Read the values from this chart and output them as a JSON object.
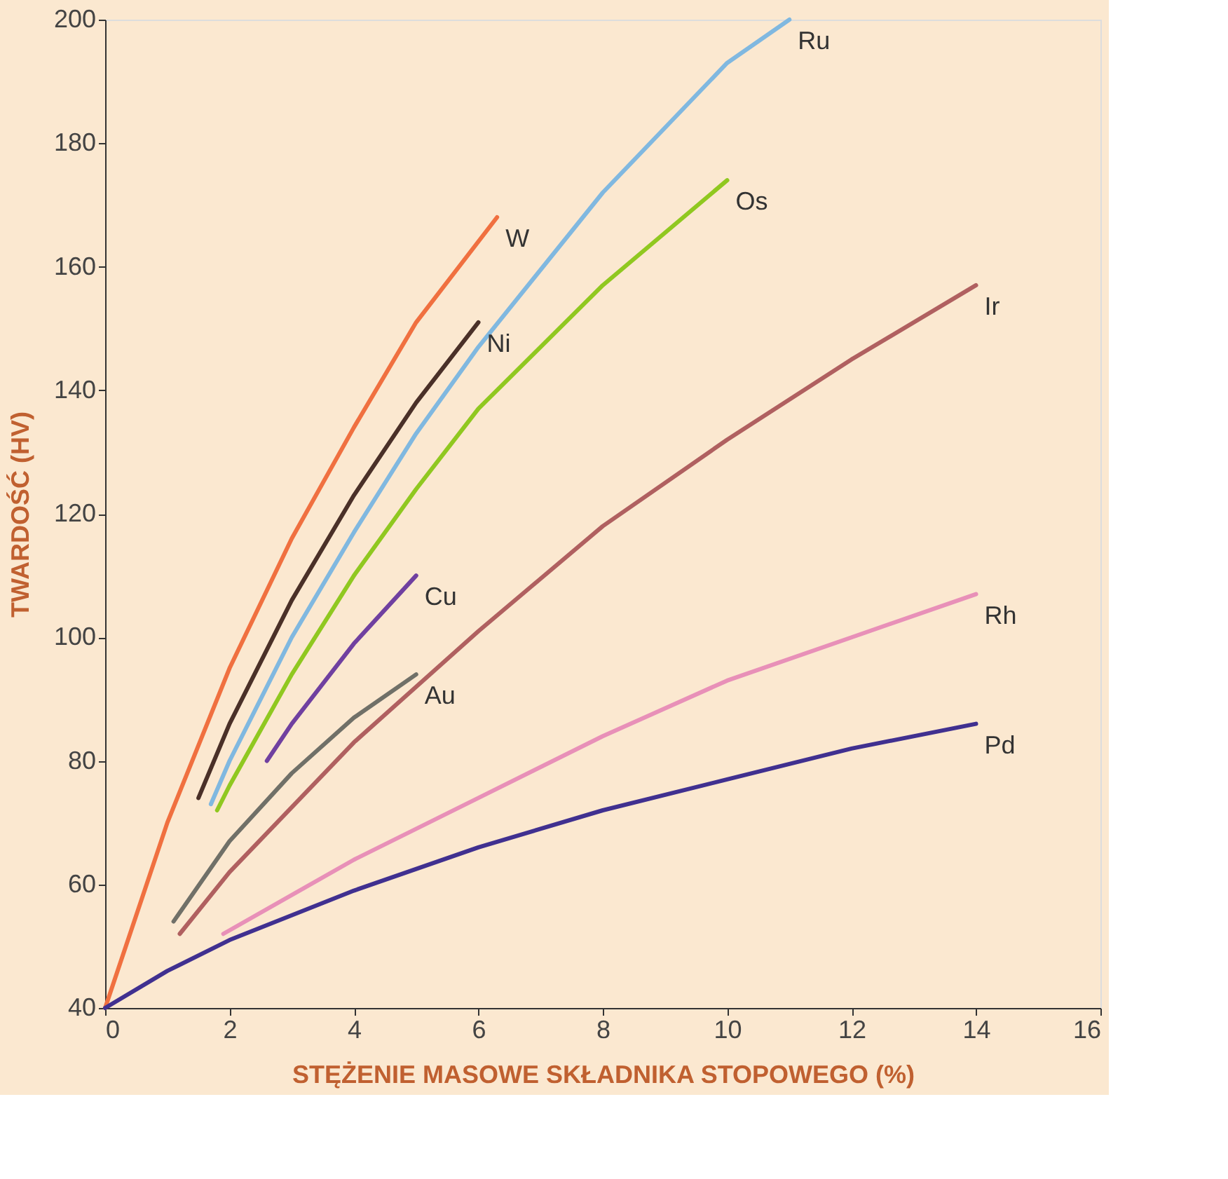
{
  "chart_data": {
    "type": "line",
    "xlabel": "STĘŻENIE MASOWE SKŁADNIKA STOPOWEGO (%)",
    "ylabel": "TWARDOŚĆ (HV)",
    "xlim": [
      0,
      16
    ],
    "ylim": [
      40,
      200
    ],
    "xticks": [
      0,
      2,
      4,
      6,
      8,
      10,
      12,
      14,
      16
    ],
    "yticks": [
      40,
      60,
      80,
      100,
      120,
      140,
      160,
      180,
      200
    ],
    "grid": false,
    "legend": false,
    "marker": "none",
    "line_style": "solid",
    "series": [
      {
        "name": "W",
        "color": "#f07040",
        "x": [
          0,
          1,
          2,
          3,
          4,
          5,
          6.3
        ],
        "values": [
          40,
          70,
          95,
          116,
          134,
          151,
          168
        ]
      },
      {
        "name": "Ni",
        "color": "#4a3028",
        "x": [
          1.5,
          2,
          3,
          4,
          5,
          6
        ],
        "values": [
          74,
          86,
          106,
          123,
          138,
          151
        ]
      },
      {
        "name": "Ru",
        "color": "#80b8e0",
        "x": [
          1.7,
          2,
          3,
          4,
          5,
          6,
          8,
          10,
          11
        ],
        "values": [
          73,
          80,
          100,
          117,
          133,
          147,
          172,
          193,
          200
        ]
      },
      {
        "name": "Os",
        "color": "#90c820",
        "x": [
          1.8,
          2,
          3,
          4,
          5,
          6,
          8,
          10
        ],
        "values": [
          72,
          76,
          94,
          110,
          124,
          137,
          157,
          174
        ]
      },
      {
        "name": "Cu",
        "color": "#7040a0",
        "x": [
          2.6,
          3,
          4,
          5
        ],
        "values": [
          80,
          86,
          99,
          110
        ]
      },
      {
        "name": "Au",
        "color": "#707068",
        "x": [
          1.1,
          2,
          3,
          4,
          5
        ],
        "values": [
          54,
          67,
          78,
          87,
          94
        ]
      },
      {
        "name": "Ir",
        "color": "#b06060",
        "x": [
          1.2,
          2,
          4,
          6,
          8,
          10,
          12,
          14
        ],
        "values": [
          52,
          62,
          83,
          101,
          118,
          132,
          145,
          157
        ]
      },
      {
        "name": "Rh",
        "color": "#e890b8",
        "x": [
          1.9,
          4,
          6,
          8,
          10,
          12,
          14
        ],
        "values": [
          52,
          64,
          74,
          84,
          93,
          100,
          107
        ]
      },
      {
        "name": "Pd",
        "color": "#403090",
        "x": [
          0,
          1,
          2,
          4,
          6,
          8,
          10,
          12,
          14
        ],
        "values": [
          40,
          46,
          51,
          59,
          66,
          72,
          77,
          82,
          86
        ]
      }
    ]
  }
}
